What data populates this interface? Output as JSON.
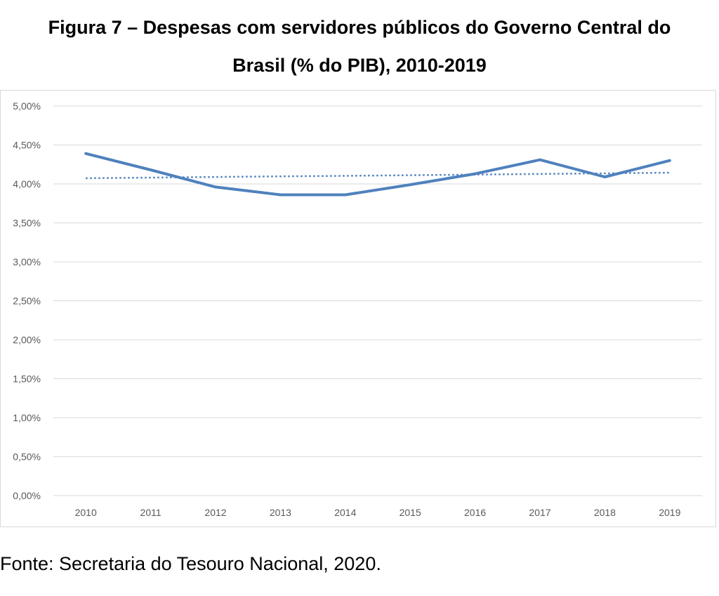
{
  "figure": {
    "title_line1": "Figura 7 – Despesas com servidores públicos do Governo Central do",
    "title_line2": "Brasil (% do PIB), 2010-2019",
    "source": "Fonte: Secretaria do Tesouro Nacional, 2020."
  },
  "chart_data": {
    "type": "line",
    "title": "Figura 7 – Despesas com servidores públicos do Governo Central do Brasil (% do PIB), 2010-2019",
    "xlabel": "",
    "ylabel": "",
    "categories": [
      "2010",
      "2011",
      "2012",
      "2013",
      "2014",
      "2015",
      "2016",
      "2017",
      "2018",
      "2019"
    ],
    "series": [
      {
        "values": [
          4.39,
          4.18,
          3.96,
          3.86,
          3.86,
          3.99,
          4.13,
          4.31,
          4.09,
          4.3
        ],
        "color": "#4f81bd",
        "style": "solid"
      },
      {
        "values": [
          4.073,
          4.081,
          4.089,
          4.097,
          4.104,
          4.112,
          4.12,
          4.128,
          4.136,
          4.144
        ],
        "color": "#4f81bd",
        "style": "dotted",
        "kind": "trendline"
      }
    ],
    "ylim": [
      0,
      5
    ],
    "yticks": [
      0,
      0.5,
      1,
      1.5,
      2,
      2.5,
      3,
      3.5,
      4,
      4.5,
      5
    ],
    "ytick_labels": [
      "0,00%",
      "0,50%",
      "1,00%",
      "1,50%",
      "2,00%",
      "2,50%",
      "3,00%",
      "3,50%",
      "4,00%",
      "4,50%",
      "5,00%"
    ],
    "grid": true,
    "legend": "none"
  }
}
